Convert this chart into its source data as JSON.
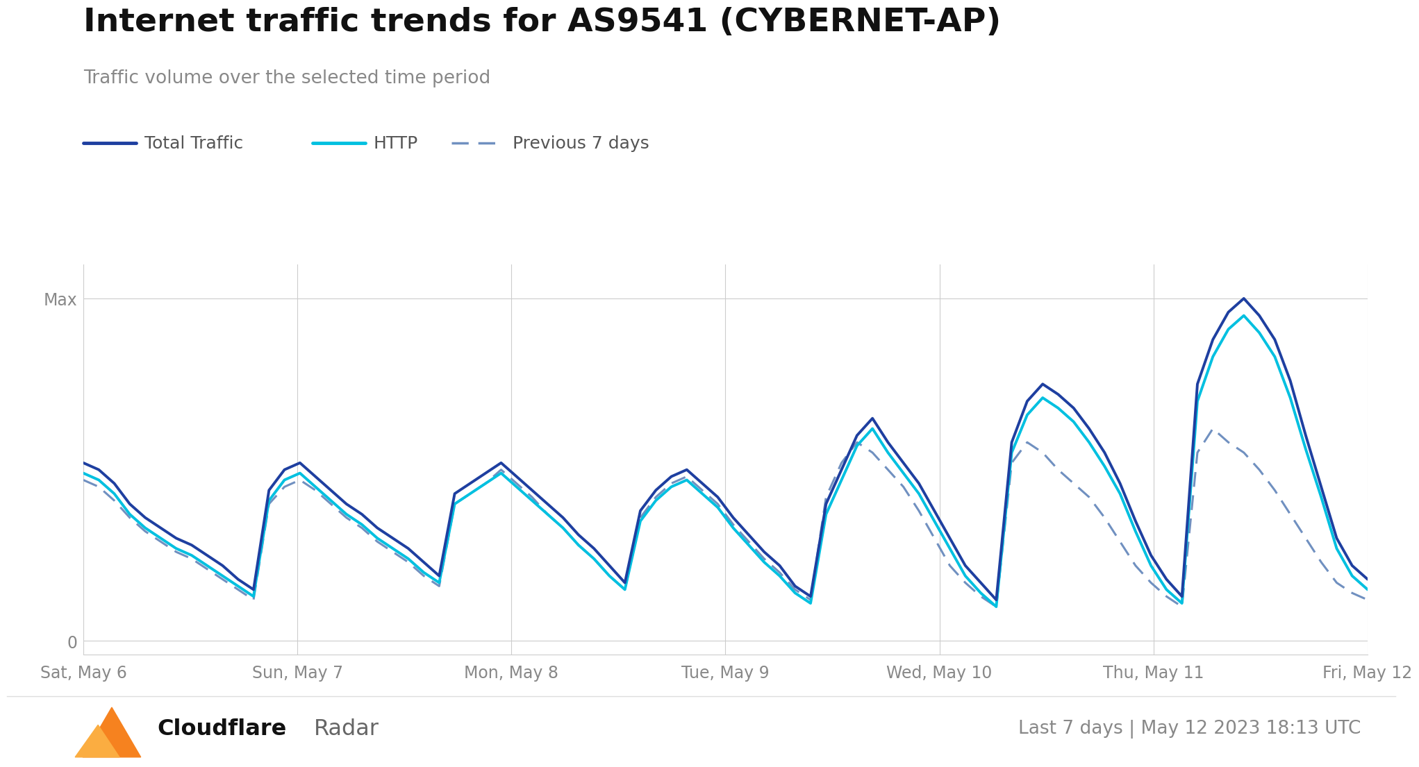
{
  "title": "Internet traffic trends for AS9541 (CYBERNET-AP)",
  "subtitle": "Traffic volume over the selected time period",
  "footer_right": "Last 7 days | May 12 2023 18:13 UTC",
  "x_labels": [
    "Sat, May 6",
    "Sun, May 7",
    "Mon, May 8",
    "Tue, May 9",
    "Wed, May 10",
    "Thu, May 11",
    "Fri, May 12"
  ],
  "color_total": "#1e3fa0",
  "color_http": "#00c0e0",
  "color_prev": "#7090c0",
  "bg_color": "#ffffff",
  "legend_entries": [
    "Total Traffic",
    "HTTP",
    "Previous 7 days"
  ],
  "total_traffic": [
    0.52,
    0.5,
    0.46,
    0.4,
    0.36,
    0.33,
    0.3,
    0.28,
    0.25,
    0.22,
    0.18,
    0.15,
    0.44,
    0.5,
    0.52,
    0.48,
    0.44,
    0.4,
    0.37,
    0.33,
    0.3,
    0.27,
    0.23,
    0.19,
    0.43,
    0.46,
    0.49,
    0.52,
    0.48,
    0.44,
    0.4,
    0.36,
    0.31,
    0.27,
    0.22,
    0.17,
    0.38,
    0.44,
    0.48,
    0.5,
    0.46,
    0.42,
    0.36,
    0.31,
    0.26,
    0.22,
    0.16,
    0.13,
    0.4,
    0.5,
    0.6,
    0.65,
    0.58,
    0.52,
    0.46,
    0.38,
    0.3,
    0.22,
    0.17,
    0.12,
    0.58,
    0.7,
    0.75,
    0.72,
    0.68,
    0.62,
    0.55,
    0.46,
    0.35,
    0.25,
    0.18,
    0.13,
    0.75,
    0.88,
    0.96,
    1.0,
    0.95,
    0.88,
    0.76,
    0.6,
    0.45,
    0.3,
    0.22,
    0.18
  ],
  "http_traffic": [
    0.49,
    0.47,
    0.43,
    0.37,
    0.33,
    0.3,
    0.27,
    0.25,
    0.22,
    0.19,
    0.16,
    0.13,
    0.41,
    0.47,
    0.49,
    0.45,
    0.41,
    0.37,
    0.34,
    0.3,
    0.27,
    0.24,
    0.2,
    0.17,
    0.4,
    0.43,
    0.46,
    0.49,
    0.45,
    0.41,
    0.37,
    0.33,
    0.28,
    0.24,
    0.19,
    0.15,
    0.35,
    0.41,
    0.45,
    0.47,
    0.43,
    0.39,
    0.33,
    0.28,
    0.23,
    0.19,
    0.14,
    0.11,
    0.37,
    0.47,
    0.57,
    0.62,
    0.55,
    0.49,
    0.43,
    0.35,
    0.27,
    0.19,
    0.14,
    0.1,
    0.55,
    0.66,
    0.71,
    0.68,
    0.64,
    0.58,
    0.51,
    0.43,
    0.32,
    0.22,
    0.15,
    0.11,
    0.7,
    0.83,
    0.91,
    0.95,
    0.9,
    0.83,
    0.71,
    0.56,
    0.42,
    0.27,
    0.19,
    0.15
  ],
  "prev_traffic": [
    0.47,
    0.45,
    0.41,
    0.36,
    0.32,
    0.29,
    0.26,
    0.24,
    0.21,
    0.18,
    0.15,
    0.12,
    0.4,
    0.45,
    0.47,
    0.44,
    0.4,
    0.36,
    0.33,
    0.29,
    0.26,
    0.23,
    0.19,
    0.16,
    0.4,
    0.43,
    0.46,
    0.5,
    0.46,
    0.42,
    0.37,
    0.33,
    0.28,
    0.24,
    0.19,
    0.15,
    0.36,
    0.42,
    0.46,
    0.48,
    0.44,
    0.4,
    0.34,
    0.29,
    0.24,
    0.2,
    0.15,
    0.12,
    0.42,
    0.52,
    0.58,
    0.55,
    0.5,
    0.45,
    0.38,
    0.3,
    0.22,
    0.17,
    0.13,
    0.1,
    0.52,
    0.58,
    0.55,
    0.5,
    0.46,
    0.42,
    0.36,
    0.29,
    0.22,
    0.17,
    0.13,
    0.1,
    0.55,
    0.62,
    0.58,
    0.55,
    0.5,
    0.44,
    0.37,
    0.3,
    0.23,
    0.17,
    0.14,
    0.12
  ]
}
